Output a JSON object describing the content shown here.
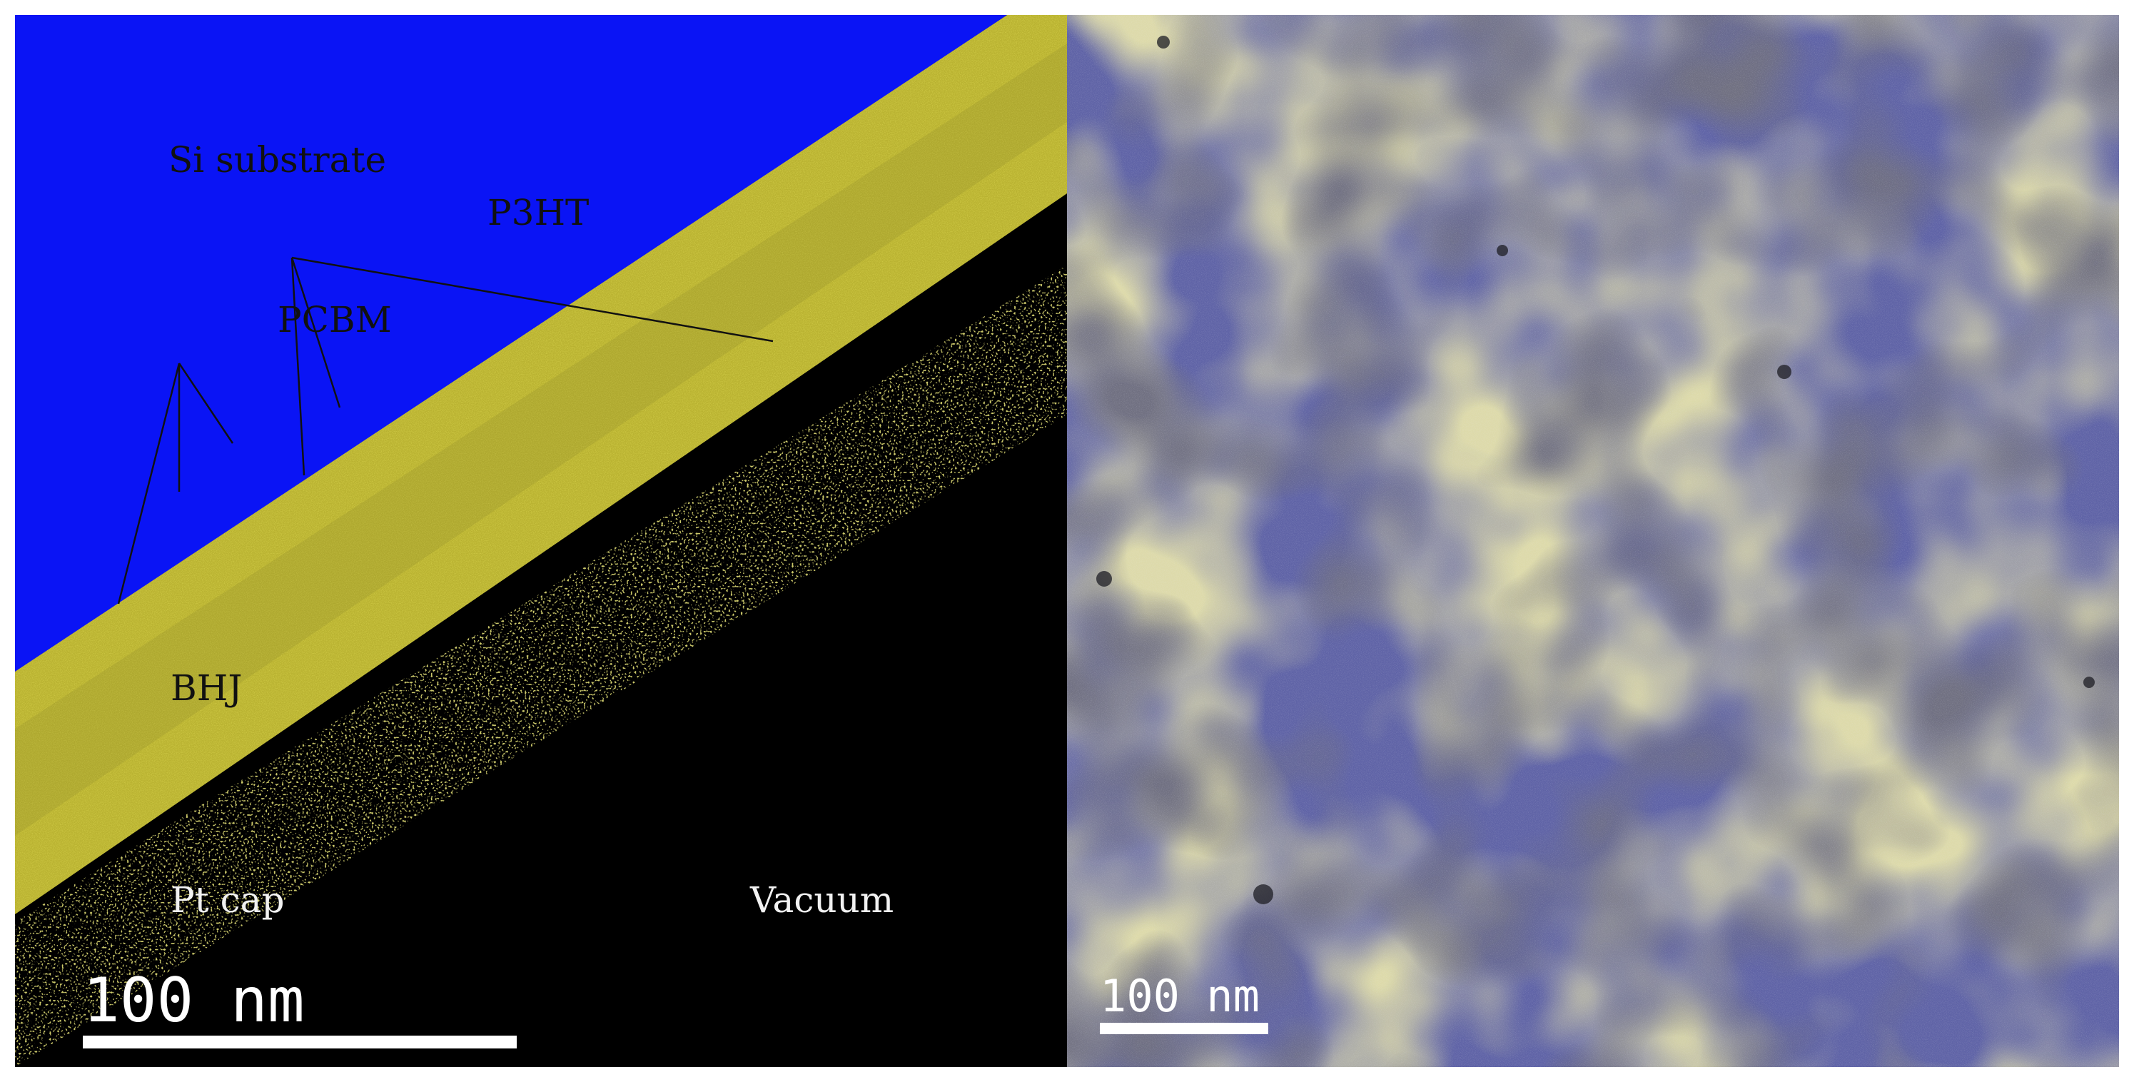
{
  "left_panel": {
    "labels": {
      "si_substrate": "Si substrate",
      "p3ht": "P3HT",
      "pcbm": "PCBM",
      "bhj": "BHJ",
      "pt_cap": "Pt cap",
      "vacuum": "Vacuum"
    },
    "scale_bar": {
      "label": "100 nm"
    },
    "colors": {
      "si_substrate": "#0a14f5",
      "organic_layer": "#c8c23a",
      "pt_cap": "#000000",
      "annotation_lines": "#111111"
    }
  },
  "right_panel": {
    "scale_bar": {
      "label": "100 nm"
    },
    "colors": {
      "blue_phase": "#6b6fb0",
      "yellow_phase": "#b8b46a",
      "dark_spots": "#2a2a30"
    }
  }
}
